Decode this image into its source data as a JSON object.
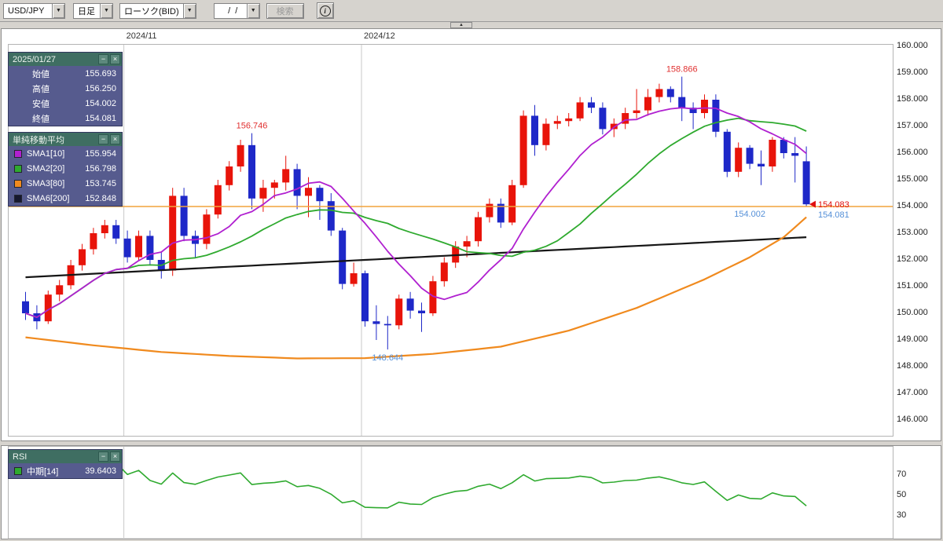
{
  "toolbar": {
    "symbol_select": {
      "value": "USD/JPY"
    },
    "timeframe_select": {
      "value": "日足"
    },
    "chart_type_select": {
      "value": "ローソク(BID)"
    },
    "date_input": {
      "value": "  /  /"
    },
    "search_button": "検索"
  },
  "main_chart": {
    "ohlc_panel": {
      "title": "2025/01/27",
      "minimize": "−",
      "close": "×",
      "rows": [
        {
          "label": "始値",
          "value": "155.693"
        },
        {
          "label": "高値",
          "value": "156.250"
        },
        {
          "label": "安値",
          "value": "154.002"
        },
        {
          "label": "終値",
          "value": "154.081"
        }
      ]
    },
    "sma_panel": {
      "title": "単純移動平均",
      "minimize": "−",
      "close": "×",
      "rows": [
        {
          "label": "SMA1[10]",
          "value": "155.954",
          "color": "#b020d0"
        },
        {
          "label": "SMA2[20]",
          "value": "156.798",
          "color": "#2faa2f"
        },
        {
          "label": "SMA3[80]",
          "value": "153.745",
          "color": "#f08a1e"
        },
        {
          "label": "SMA6[200]",
          "value": "152.848",
          "color": "#16182e"
        }
      ]
    }
  },
  "rsi_panel": {
    "title": "RSI",
    "minimize": "−",
    "close": "×",
    "row": {
      "label": "中期[14]",
      "value": "39.6403",
      "color": "#2faa2f"
    }
  },
  "chart_data": {
    "type": "candlestick",
    "title": "USD/JPY 日足 ローソク(BID)",
    "up_color": "#e8140a",
    "down_color": "#1e28c8",
    "grid_color": "#c8c8c8",
    "y_ticks": [
      "160.000",
      "159.000",
      "158.000",
      "157.000",
      "156.000",
      "155.000",
      "154.000",
      "153.000",
      "152.000",
      "151.000",
      "150.000",
      "149.000",
      "148.000",
      "147.000",
      "146.000"
    ],
    "x_gridlines": [
      {
        "index": 9,
        "label": "2024/11"
      },
      {
        "index": 30,
        "label": "2024/12"
      }
    ],
    "candles": [
      [
        150.45,
        150.8,
        149.75,
        150.0
      ],
      [
        150.0,
        150.3,
        149.4,
        149.7
      ],
      [
        149.7,
        150.85,
        149.6,
        150.7
      ],
      [
        150.7,
        151.25,
        150.45,
        151.05
      ],
      [
        151.05,
        152.0,
        150.9,
        151.8
      ],
      [
        151.8,
        152.6,
        151.6,
        152.4
      ],
      [
        152.4,
        153.2,
        152.2,
        153.0
      ],
      [
        153.0,
        153.5,
        152.8,
        153.3
      ],
      [
        153.3,
        153.5,
        152.6,
        152.8
      ],
      [
        152.8,
        153.1,
        151.9,
        152.1
      ],
      [
        152.1,
        153.1,
        152.0,
        152.9
      ],
      [
        152.9,
        153.1,
        151.8,
        152.0
      ],
      [
        152.0,
        152.3,
        151.3,
        151.6
      ],
      [
        151.6,
        154.7,
        151.4,
        154.4
      ],
      [
        154.4,
        154.7,
        152.7,
        152.9
      ],
      [
        152.9,
        153.1,
        152.1,
        152.6
      ],
      [
        152.6,
        153.9,
        152.4,
        153.7
      ],
      [
        153.7,
        155.0,
        153.55,
        154.8
      ],
      [
        154.8,
        155.7,
        154.6,
        155.5
      ],
      [
        155.5,
        156.5,
        155.3,
        156.3
      ],
      [
        156.3,
        156.746,
        153.9,
        154.3
      ],
      [
        154.3,
        155.0,
        153.8,
        154.7
      ],
      [
        154.7,
        155.0,
        154.3,
        154.9
      ],
      [
        154.9,
        155.9,
        154.6,
        155.4
      ],
      [
        155.4,
        155.6,
        153.9,
        154.4
      ],
      [
        154.4,
        155.1,
        153.6,
        154.7
      ],
      [
        154.7,
        154.8,
        153.5,
        154.2
      ],
      [
        154.2,
        154.5,
        152.9,
        153.1
      ],
      [
        153.1,
        153.2,
        150.9,
        151.1
      ],
      [
        151.1,
        151.9,
        151.0,
        151.5
      ],
      [
        151.5,
        151.6,
        149.5,
        149.7
      ],
      [
        149.7,
        150.3,
        149.0,
        149.6
      ],
      [
        149.6,
        149.9,
        148.644,
        149.55
      ],
      [
        149.55,
        150.7,
        149.4,
        150.55
      ],
      [
        150.55,
        150.8,
        149.8,
        150.1
      ],
      [
        150.1,
        150.4,
        149.3,
        150.0
      ],
      [
        150.0,
        151.4,
        149.9,
        151.2
      ],
      [
        151.2,
        152.1,
        151.0,
        151.9
      ],
      [
        151.9,
        152.7,
        151.7,
        152.5
      ],
      [
        152.5,
        152.9,
        152.1,
        152.7
      ],
      [
        152.7,
        153.8,
        152.5,
        153.6
      ],
      [
        153.6,
        154.3,
        153.4,
        154.1
      ],
      [
        154.1,
        154.3,
        153.2,
        153.4
      ],
      [
        153.4,
        155.0,
        153.3,
        154.8
      ],
      [
        154.8,
        157.6,
        154.7,
        157.4
      ],
      [
        157.4,
        157.8,
        155.9,
        156.3
      ],
      [
        156.3,
        157.3,
        156.1,
        157.1
      ],
      [
        157.1,
        157.4,
        156.9,
        157.2
      ],
      [
        157.2,
        157.5,
        157.0,
        157.3
      ],
      [
        157.3,
        158.1,
        157.2,
        157.9
      ],
      [
        157.9,
        158.1,
        157.5,
        157.7
      ],
      [
        157.7,
        157.9,
        156.7,
        156.9
      ],
      [
        156.9,
        157.3,
        156.6,
        157.1
      ],
      [
        157.1,
        157.7,
        156.9,
        157.5
      ],
      [
        157.5,
        158.4,
        157.3,
        157.6
      ],
      [
        157.6,
        158.4,
        157.4,
        158.1
      ],
      [
        158.1,
        158.6,
        157.9,
        158.4
      ],
      [
        158.4,
        158.5,
        157.9,
        158.1
      ],
      [
        158.1,
        158.866,
        157.2,
        157.7
      ],
      [
        157.7,
        157.9,
        156.9,
        157.5
      ],
      [
        157.5,
        158.2,
        157.3,
        158.0
      ],
      [
        158.0,
        158.2,
        156.6,
        156.8
      ],
      [
        156.8,
        156.9,
        155.1,
        155.3
      ],
      [
        155.3,
        156.4,
        155.1,
        156.2
      ],
      [
        156.2,
        156.3,
        155.4,
        155.6
      ],
      [
        155.6,
        156.1,
        154.8,
        155.5
      ],
      [
        155.5,
        156.6,
        155.3,
        156.5
      ],
      [
        156.5,
        156.6,
        155.8,
        156.0
      ],
      [
        156.0,
        156.6,
        154.9,
        155.9
      ],
      [
        155.693,
        156.25,
        154.002,
        154.081
      ]
    ],
    "overlays": {
      "sma10": {
        "period": 10,
        "color": "#b020d0"
      },
      "sma20": {
        "period": 20,
        "color": "#2faa2f"
      },
      "sma80": {
        "color": "#f08a1e",
        "keypoints": [
          [
            0,
            149.1
          ],
          [
            6,
            148.8
          ],
          [
            12,
            148.55
          ],
          [
            18,
            148.4
          ],
          [
            24,
            148.31
          ],
          [
            30,
            148.32
          ],
          [
            36,
            148.48
          ],
          [
            42,
            148.75
          ],
          [
            48,
            149.35
          ],
          [
            54,
            150.2
          ],
          [
            60,
            151.27
          ],
          [
            64,
            152.1
          ],
          [
            67,
            152.85
          ],
          [
            69,
            153.6
          ]
        ]
      },
      "sma200": {
        "color": "#161616",
        "keypoints": [
          [
            0,
            151.35
          ],
          [
            15,
            151.68
          ],
          [
            30,
            152.0
          ],
          [
            45,
            152.33
          ],
          [
            58,
            152.61
          ],
          [
            69,
            152.85
          ]
        ]
      }
    },
    "hline": {
      "price": 154.0,
      "color": "#f2a33c"
    },
    "annotations": [
      {
        "text": "156.746",
        "index": 20,
        "price": 156.746,
        "pos": "above",
        "color": "#e03030"
      },
      {
        "text": "158.866",
        "index": 58,
        "price": 158.866,
        "pos": "above",
        "color": "#e03030"
      },
      {
        "text": "148.644",
        "index": 32,
        "price": 148.644,
        "pos": "below",
        "color": "#5590d8"
      },
      {
        "text": "154.002",
        "index": 64,
        "price": 153.74,
        "pos": "at",
        "color": "#5590d8"
      }
    ],
    "price_markers": [
      {
        "text": "154.083",
        "price": 154.083,
        "color": "#e01010",
        "arrow": true
      },
      {
        "text": "154.081",
        "price": 153.7,
        "color": "#5590d8",
        "arrow": false
      }
    ],
    "rsi": {
      "type": "line",
      "period": 14,
      "color": "#2faa2f",
      "y_ticks": [
        "70",
        "50",
        "30"
      ],
      "current": "39.6403"
    }
  }
}
